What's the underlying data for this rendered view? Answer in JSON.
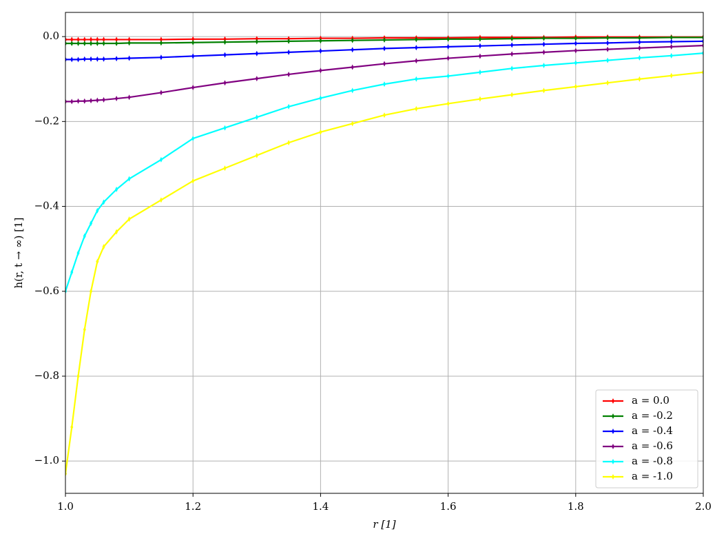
{
  "chart_data": {
    "type": "line",
    "x_label": "r [1]",
    "y_label": "h(r, t → ∞) [1]",
    "x": [
      1.0,
      1.01,
      1.02,
      1.03,
      1.04,
      1.05,
      1.06,
      1.08,
      1.1,
      1.15,
      1.2,
      1.25,
      1.3,
      1.35,
      1.4,
      1.45,
      1.5,
      1.55,
      1.6,
      1.65,
      1.7,
      1.75,
      1.8,
      1.85,
      1.9,
      1.95,
      2.0
    ],
    "series": [
      {
        "name": "a = 0.0",
        "color": "#ff0000",
        "values": [
          -0.007,
          -0.007,
          -0.007,
          -0.007,
          -0.007,
          -0.007,
          -0.007,
          -0.007,
          -0.007,
          -0.007,
          -0.006,
          -0.006,
          -0.005,
          -0.005,
          -0.004,
          -0.004,
          -0.003,
          -0.003,
          -0.003,
          -0.002,
          -0.002,
          -0.002,
          -0.001,
          -0.001,
          -0.001,
          -0.001,
          -0.001
        ]
      },
      {
        "name": "a = -0.2",
        "color": "#008000",
        "values": [
          -0.016,
          -0.016,
          -0.016,
          -0.016,
          -0.016,
          -0.016,
          -0.016,
          -0.016,
          -0.015,
          -0.015,
          -0.014,
          -0.013,
          -0.012,
          -0.011,
          -0.01,
          -0.009,
          -0.008,
          -0.007,
          -0.006,
          -0.006,
          -0.005,
          -0.004,
          -0.004,
          -0.003,
          -0.003,
          -0.002,
          -0.002
        ]
      },
      {
        "name": "a = -0.4",
        "color": "#0000ff",
        "values": [
          -0.054,
          -0.054,
          -0.054,
          -0.053,
          -0.053,
          -0.053,
          -0.053,
          -0.052,
          -0.051,
          -0.049,
          -0.046,
          -0.043,
          -0.04,
          -0.037,
          -0.034,
          -0.031,
          -0.028,
          -0.026,
          -0.024,
          -0.022,
          -0.02,
          -0.018,
          -0.016,
          -0.015,
          -0.013,
          -0.012,
          -0.011
        ]
      },
      {
        "name": "a = -0.6",
        "color": "#800080",
        "values": [
          -0.153,
          -0.153,
          -0.152,
          -0.152,
          -0.151,
          -0.15,
          -0.149,
          -0.146,
          -0.143,
          -0.132,
          -0.12,
          -0.109,
          -0.099,
          -0.089,
          -0.08,
          -0.072,
          -0.064,
          -0.057,
          -0.051,
          -0.046,
          -0.041,
          -0.037,
          -0.033,
          -0.03,
          -0.027,
          -0.024,
          -0.021
        ]
      },
      {
        "name": "a = -0.8",
        "color": "#00ffff",
        "values": [
          -0.6,
          -0.555,
          -0.51,
          -0.47,
          -0.44,
          -0.41,
          -0.39,
          -0.36,
          -0.335,
          -0.29,
          -0.24,
          -0.215,
          -0.19,
          -0.165,
          -0.145,
          -0.127,
          -0.112,
          -0.1,
          -0.093,
          -0.084,
          -0.075,
          -0.068,
          -0.062,
          -0.056,
          -0.05,
          -0.045,
          -0.039
        ]
      },
      {
        "name": "a = -1.0",
        "color": "#ffff00",
        "values": [
          -1.03,
          -0.92,
          -0.8,
          -0.69,
          -0.6,
          -0.53,
          -0.495,
          -0.46,
          -0.43,
          -0.385,
          -0.34,
          -0.31,
          -0.28,
          -0.25,
          -0.225,
          -0.205,
          -0.185,
          -0.17,
          -0.158,
          -0.147,
          -0.137,
          -0.127,
          -0.118,
          -0.109,
          -0.1,
          -0.092,
          -0.084
        ]
      }
    ],
    "xlim": [
      1.0,
      2.0
    ],
    "ylim": [
      -1.076,
      0.057
    ],
    "xticks": [
      {
        "value": 1.0,
        "label": "1.0"
      },
      1.2,
      1.4,
      1.6,
      1.8,
      {
        "value": 2.0,
        "label": "2.0"
      }
    ],
    "yticks": [
      {
        "value": -1.0,
        "label": "−1.0"
      },
      {
        "value": -0.8,
        "label": "−0.8"
      },
      {
        "value": -0.6,
        "label": "−0.6"
      },
      {
        "value": -0.4,
        "label": "−0.4"
      },
      {
        "value": -0.2,
        "label": "−0.2"
      },
      {
        "value": 0.0,
        "label": "0.0"
      }
    ],
    "grid": true,
    "legend": "lower right"
  }
}
